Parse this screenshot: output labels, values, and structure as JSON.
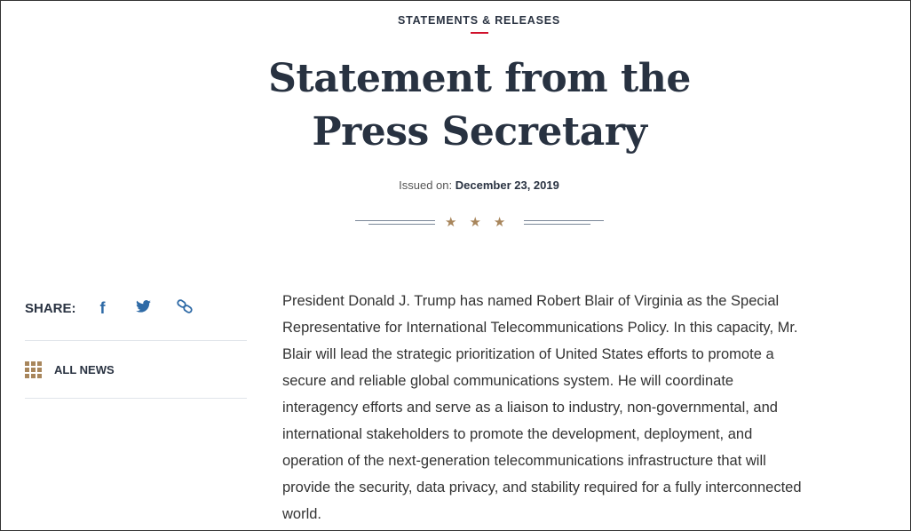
{
  "eyebrow": "STATEMENTS & RELEASES",
  "title": "Statement from the Press Secretary",
  "issued": {
    "label": "Issued on:",
    "date": "December 23, 2019"
  },
  "stars": "★★★",
  "sidebar": {
    "share_label": "SHARE:",
    "share_icons": [
      "facebook-icon",
      "twitter-icon",
      "link-icon"
    ],
    "all_news": "ALL NEWS"
  },
  "body_lines": [
    "President Donald J. Trump has named Robert Blair of Virginia as the Special",
    "Representative for International Telecommunications Policy.  In this capacity, Mr.",
    "Blair will lead the strategic prioritization of United States efforts to promote a",
    "secure and reliable global communications system.  He will coordinate",
    "interagency efforts and serve as a liaison to industry, non-governmental, and",
    "international stakeholders to promote the development, deployment, and",
    "operation of the next-generation telecommunications infrastructure that will",
    "provide the security, data privacy, and stability required for a fully interconnected",
    "world."
  ],
  "colors": {
    "accent_red": "#d0112b",
    "gold": "#a8865c",
    "link_blue": "#2e6aa6",
    "text_dark": "#283241"
  }
}
